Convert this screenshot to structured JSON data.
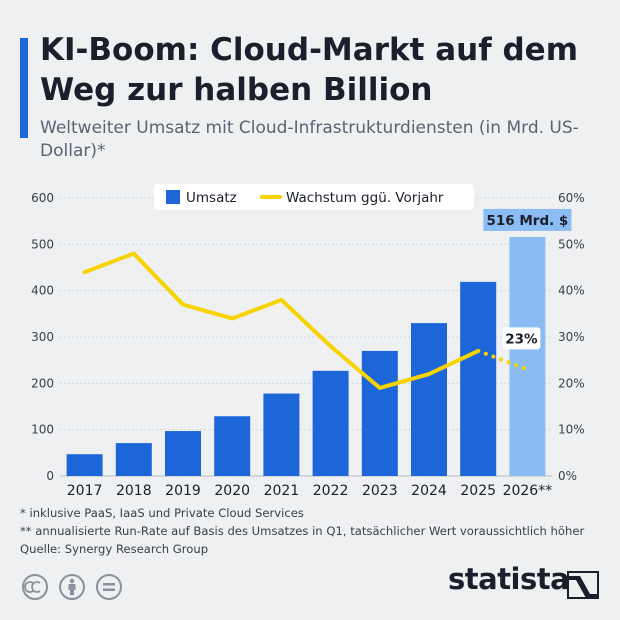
{
  "header": {
    "title": "KI-Boom: Cloud-Markt auf dem Weg zur halben Billion",
    "subtitle": "Weltweiter Umsatz mit Cloud-Infrastrukturdiensten (in Mrd. US-Dollar)*"
  },
  "chart_data": {
    "type": "bar",
    "categories": [
      "2017",
      "2018",
      "2019",
      "2020",
      "2021",
      "2022",
      "2023",
      "2024",
      "2025",
      "2026**"
    ],
    "series": [
      {
        "name": "Umsatz",
        "type": "bar",
        "axis": "left",
        "values": [
          47,
          71,
          97,
          129,
          178,
          227,
          270,
          330,
          419,
          516
        ],
        "color": "#1c66d9",
        "highlight_color": "#8bbcf4",
        "highlight_index": 9
      },
      {
        "name": "Wachstum ggü. Vorjahr",
        "type": "line",
        "axis": "right",
        "values": [
          44,
          48,
          37,
          34,
          38,
          28,
          19,
          22,
          27,
          23
        ],
        "unit": "%",
        "color": "#f7d300",
        "dotted_from_index": 8
      }
    ],
    "ylim": [
      0,
      600
    ],
    "y_ticks": [
      "0",
      "100",
      "200",
      "300",
      "400",
      "500",
      "600"
    ],
    "y2lim": [
      0,
      60
    ],
    "y2_ticks": [
      "0%",
      "10%",
      "20%",
      "30%",
      "40%",
      "50%",
      "60%"
    ],
    "grid": true,
    "legend": "top-center",
    "annotations": [
      {
        "label": "516 Mrd. $",
        "category_index": 9,
        "series": "Umsatz"
      },
      {
        "label": "23%",
        "category_index": 9,
        "series": "Wachstum ggü. Vorjahr"
      }
    ]
  },
  "footnotes": {
    "note1": "*   inklusive PaaS, IaaS und Private Cloud Services",
    "note2": "** annualisierte Run-Rate auf Basis des Umsatzes in Q1, tatsächlicher Wert voraussichtlich höher",
    "source": "Quelle: Synergy Research Group"
  },
  "brand": {
    "name": "statista"
  },
  "icons": [
    "creative-commons-icon",
    "attribution-icon",
    "no-derivatives-icon",
    "statista-logo-icon"
  ],
  "colors": {
    "accent": "#1c66d9",
    "background": "#eef0f2",
    "line": "#f7d300"
  }
}
